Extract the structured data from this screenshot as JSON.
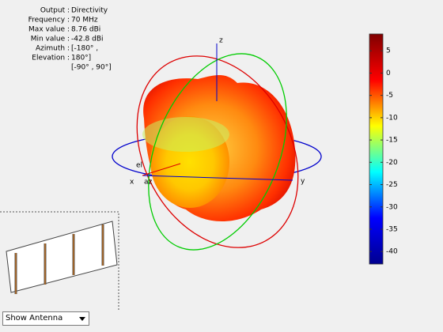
{
  "chart_data": {
    "type": "pattern3d",
    "info": [
      {
        "label": "Output :",
        "value": "Directivity"
      },
      {
        "label": "Frequency :",
        "value": "70 MHz"
      },
      {
        "label": "Max value :",
        "value": "8.76 dBi"
      },
      {
        "label": "Min value :",
        "value": "-42.8 dBi"
      },
      {
        "label": "Azimuth :",
        "value": "[-180° ,"
      },
      {
        "label": "Elevation :",
        "value": "180°]"
      },
      {
        "value": "[-90° , 90°]"
      }
    ],
    "axis_labels": {
      "x": "x",
      "y": "y",
      "z": "z",
      "az": "az",
      "el": "el"
    },
    "clim": [
      -42.8,
      8.76
    ],
    "cticks": [
      5,
      0,
      -5,
      -10,
      -15,
      -20,
      -25,
      -30,
      -35,
      -40
    ],
    "colormap": [
      "#00008f",
      "#0000ff",
      "#00ffff",
      "#ffff00",
      "#ff0000",
      "#800000"
    ],
    "dropdown": "Show Antenna"
  }
}
